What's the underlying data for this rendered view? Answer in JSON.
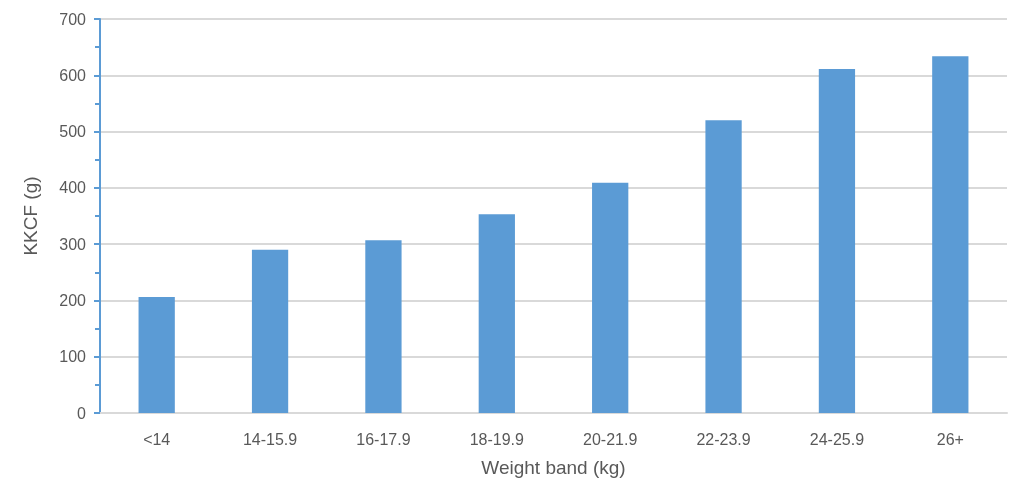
{
  "chart_data": {
    "type": "bar",
    "xlabel": "Weight band (kg)",
    "ylabel": "KKCF (g)",
    "categories": [
      "<14",
      "14-15.9",
      "16-17.9",
      "18-19.9",
      "20-21.9",
      "22-23.9",
      "24-25.9",
      "26+"
    ],
    "values": [
      206,
      290,
      307,
      353,
      409,
      520,
      611,
      634
    ],
    "color": "#5b9bd5",
    "ylim": [
      0,
      700
    ],
    "yticks": [
      0,
      100,
      200,
      300,
      400,
      500,
      600,
      700
    ],
    "grid": "y"
  }
}
